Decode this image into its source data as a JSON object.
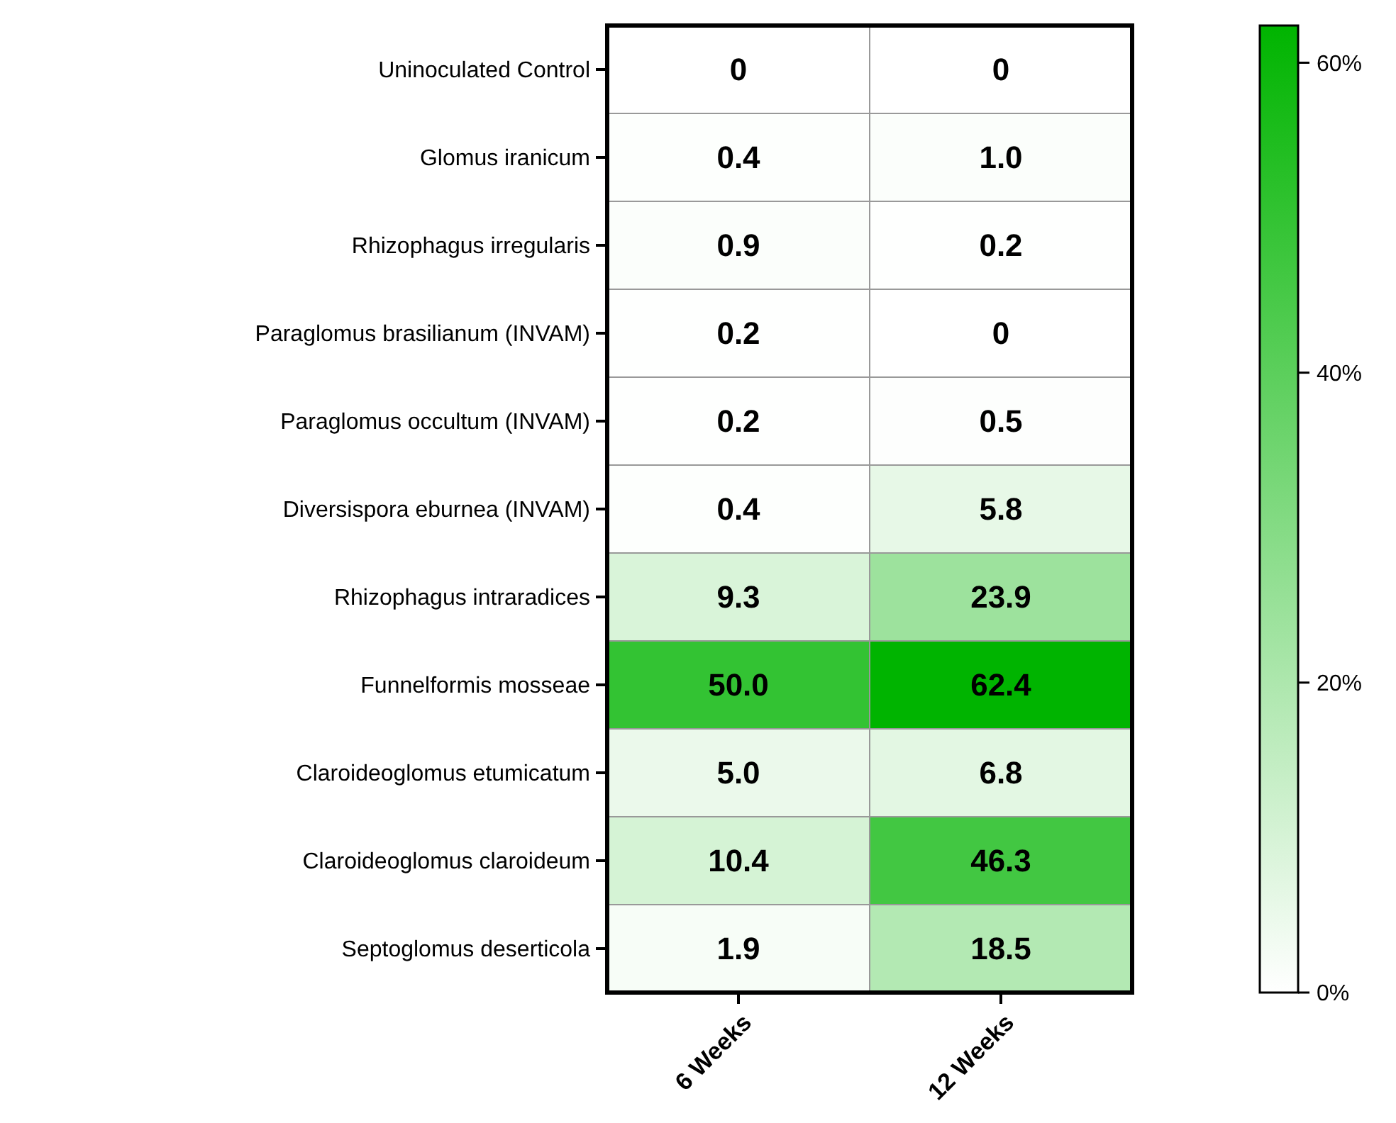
{
  "chart_data": {
    "type": "heatmap",
    "categories": [
      "6 Weeks",
      "12 Weeks"
    ],
    "y_categories": [
      "Uninoculated Control",
      "Glomus iranicum",
      "Rhizophagus irregularis",
      "Paraglomus brasilianum (INVAM)",
      "Paraglomus occultum (INVAM)",
      "Diversispora eburnea (INVAM)",
      "Rhizophagus intraradices",
      "Funnelformis mosseae",
      "Claroideoglomus etumicatum",
      "Claroideoglomus claroideum",
      "Septoglomus deserticola"
    ],
    "cells": [
      [
        0,
        0
      ],
      [
        0.4,
        1.0
      ],
      [
        0.9,
        0.2
      ],
      [
        0.2,
        0
      ],
      [
        0.2,
        0.5
      ],
      [
        0.4,
        5.8
      ],
      [
        9.3,
        23.9
      ],
      [
        50.0,
        62.4
      ],
      [
        5.0,
        6.8
      ],
      [
        10.4,
        46.3
      ],
      [
        1.9,
        18.5
      ]
    ],
    "cell_labels": [
      [
        "0",
        "0"
      ],
      [
        "0.4",
        "1.0"
      ],
      [
        "0.9",
        "0.2"
      ],
      [
        "0.2",
        "0"
      ],
      [
        "0.2",
        "0.5"
      ],
      [
        "0.4",
        "5.8"
      ],
      [
        "9.3",
        "23.9"
      ],
      [
        "50.0",
        "62.4"
      ],
      [
        "5.0",
        "6.8"
      ],
      [
        "10.4",
        "46.3"
      ],
      [
        "1.9",
        "18.5"
      ]
    ],
    "clim": [
      0,
      62.4
    ],
    "cticks": [
      {
        "value": 0,
        "label": "0%"
      },
      {
        "value": 20,
        "label": "20%"
      },
      {
        "value": 40,
        "label": "40%"
      },
      {
        "value": 60,
        "label": "60%"
      }
    ],
    "colors": [
      "#ffffff",
      "#00b400"
    ]
  }
}
